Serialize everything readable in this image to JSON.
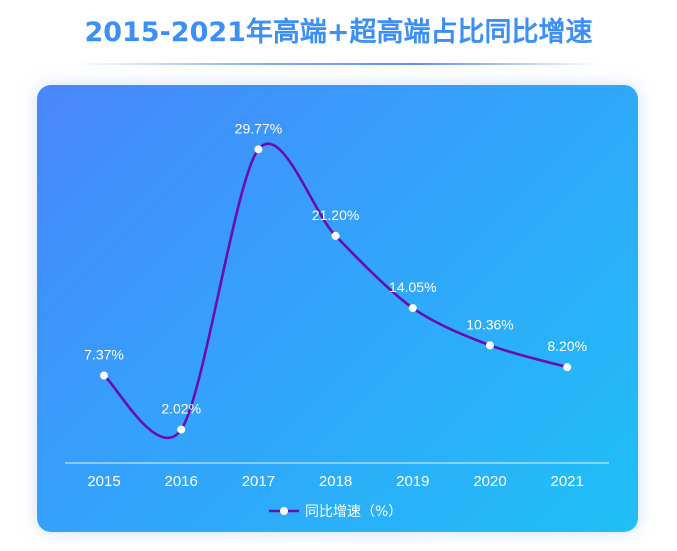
{
  "title": "2015-2021年高端+超高端占比同比增速",
  "chart_data": {
    "type": "line",
    "categories": [
      "2015",
      "2016",
      "2017",
      "2018",
      "2019",
      "2020",
      "2021"
    ],
    "series": [
      {
        "name": "同比增速（%）",
        "values": [
          7.37,
          2.02,
          29.77,
          21.2,
          14.05,
          10.36,
          8.2
        ],
        "labels": [
          "7.37%",
          "2.02%",
          "29.77%",
          "21.20%",
          "14.05%",
          "10.36%",
          "8.20%"
        ]
      }
    ],
    "ylim": [
      -0.5,
      30
    ],
    "grid": false,
    "legend_position": "bottom-center",
    "line_color": "#6a0dad",
    "marker_color": "#ffffff",
    "text_color": "#ffffff"
  }
}
